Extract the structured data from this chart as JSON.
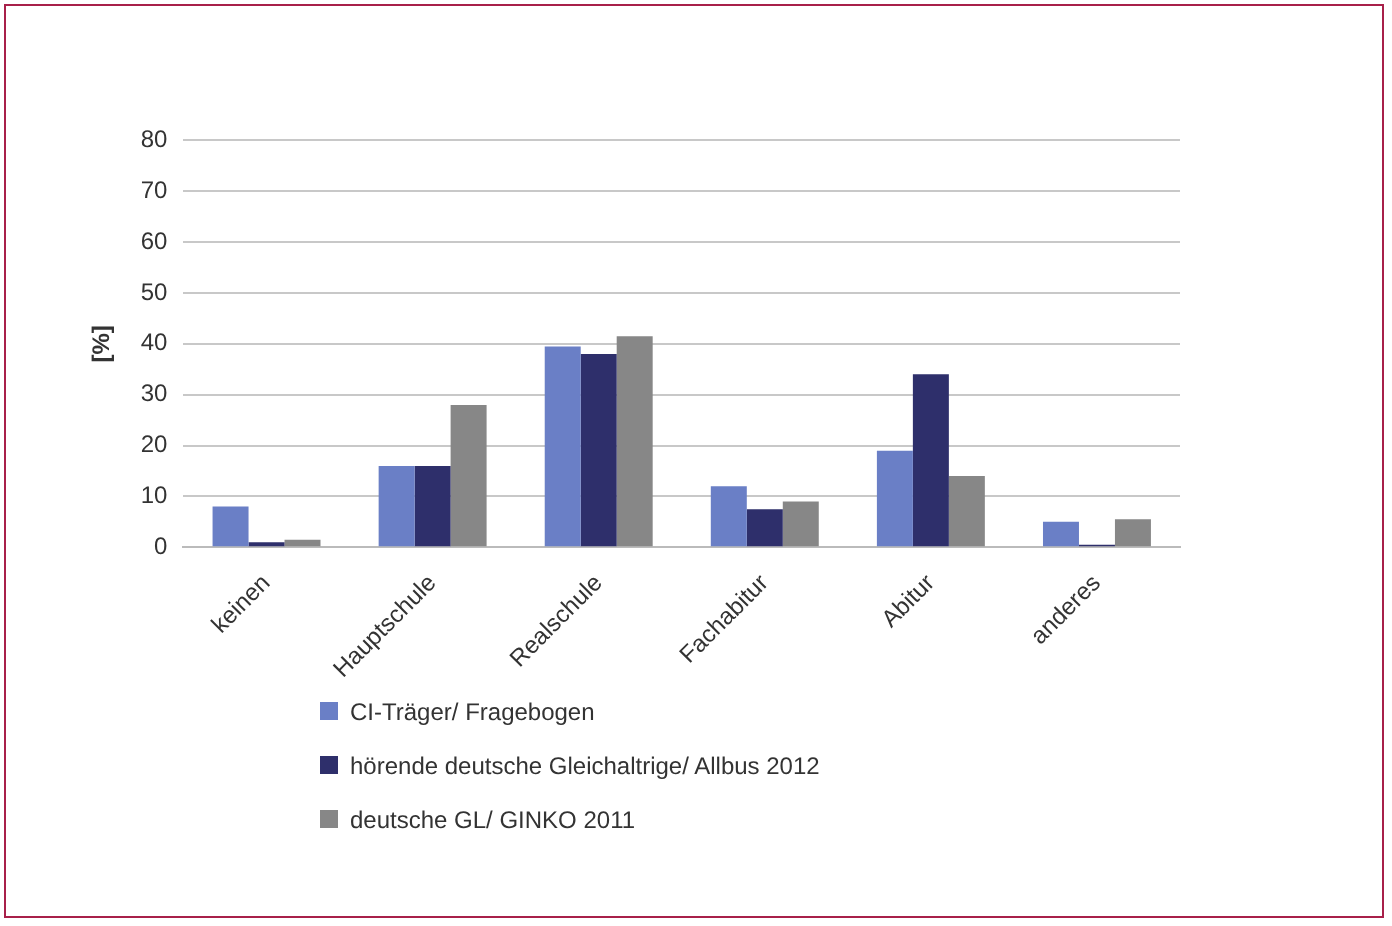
{
  "chart_data": {
    "type": "bar",
    "ylabel": "[%]",
    "categories": [
      "keinen",
      "Hauptschule",
      "Realschule",
      "Fachabitur",
      "Abitur",
      "anderes"
    ],
    "series": [
      {
        "name": "CI-Träger/ Fragebogen",
        "color": "#6a7fc6",
        "values": [
          8,
          16,
          39.5,
          12,
          19,
          5
        ]
      },
      {
        "name": "hörende deutsche Gleichaltrige/ Allbus 2012",
        "color": "#2e2f6b",
        "values": [
          1,
          16,
          38,
          7.5,
          34,
          0.5
        ]
      },
      {
        "name": "deutsche GL/ GINKO 2011",
        "color": "#878787",
        "values": [
          1.5,
          28,
          41.5,
          9,
          14,
          5.5
        ]
      }
    ],
    "ylim": [
      0,
      80
    ],
    "yticks": [
      0,
      10,
      20,
      30,
      40,
      50,
      60,
      70,
      80
    ],
    "grid": "y",
    "legend": "bottom"
  }
}
